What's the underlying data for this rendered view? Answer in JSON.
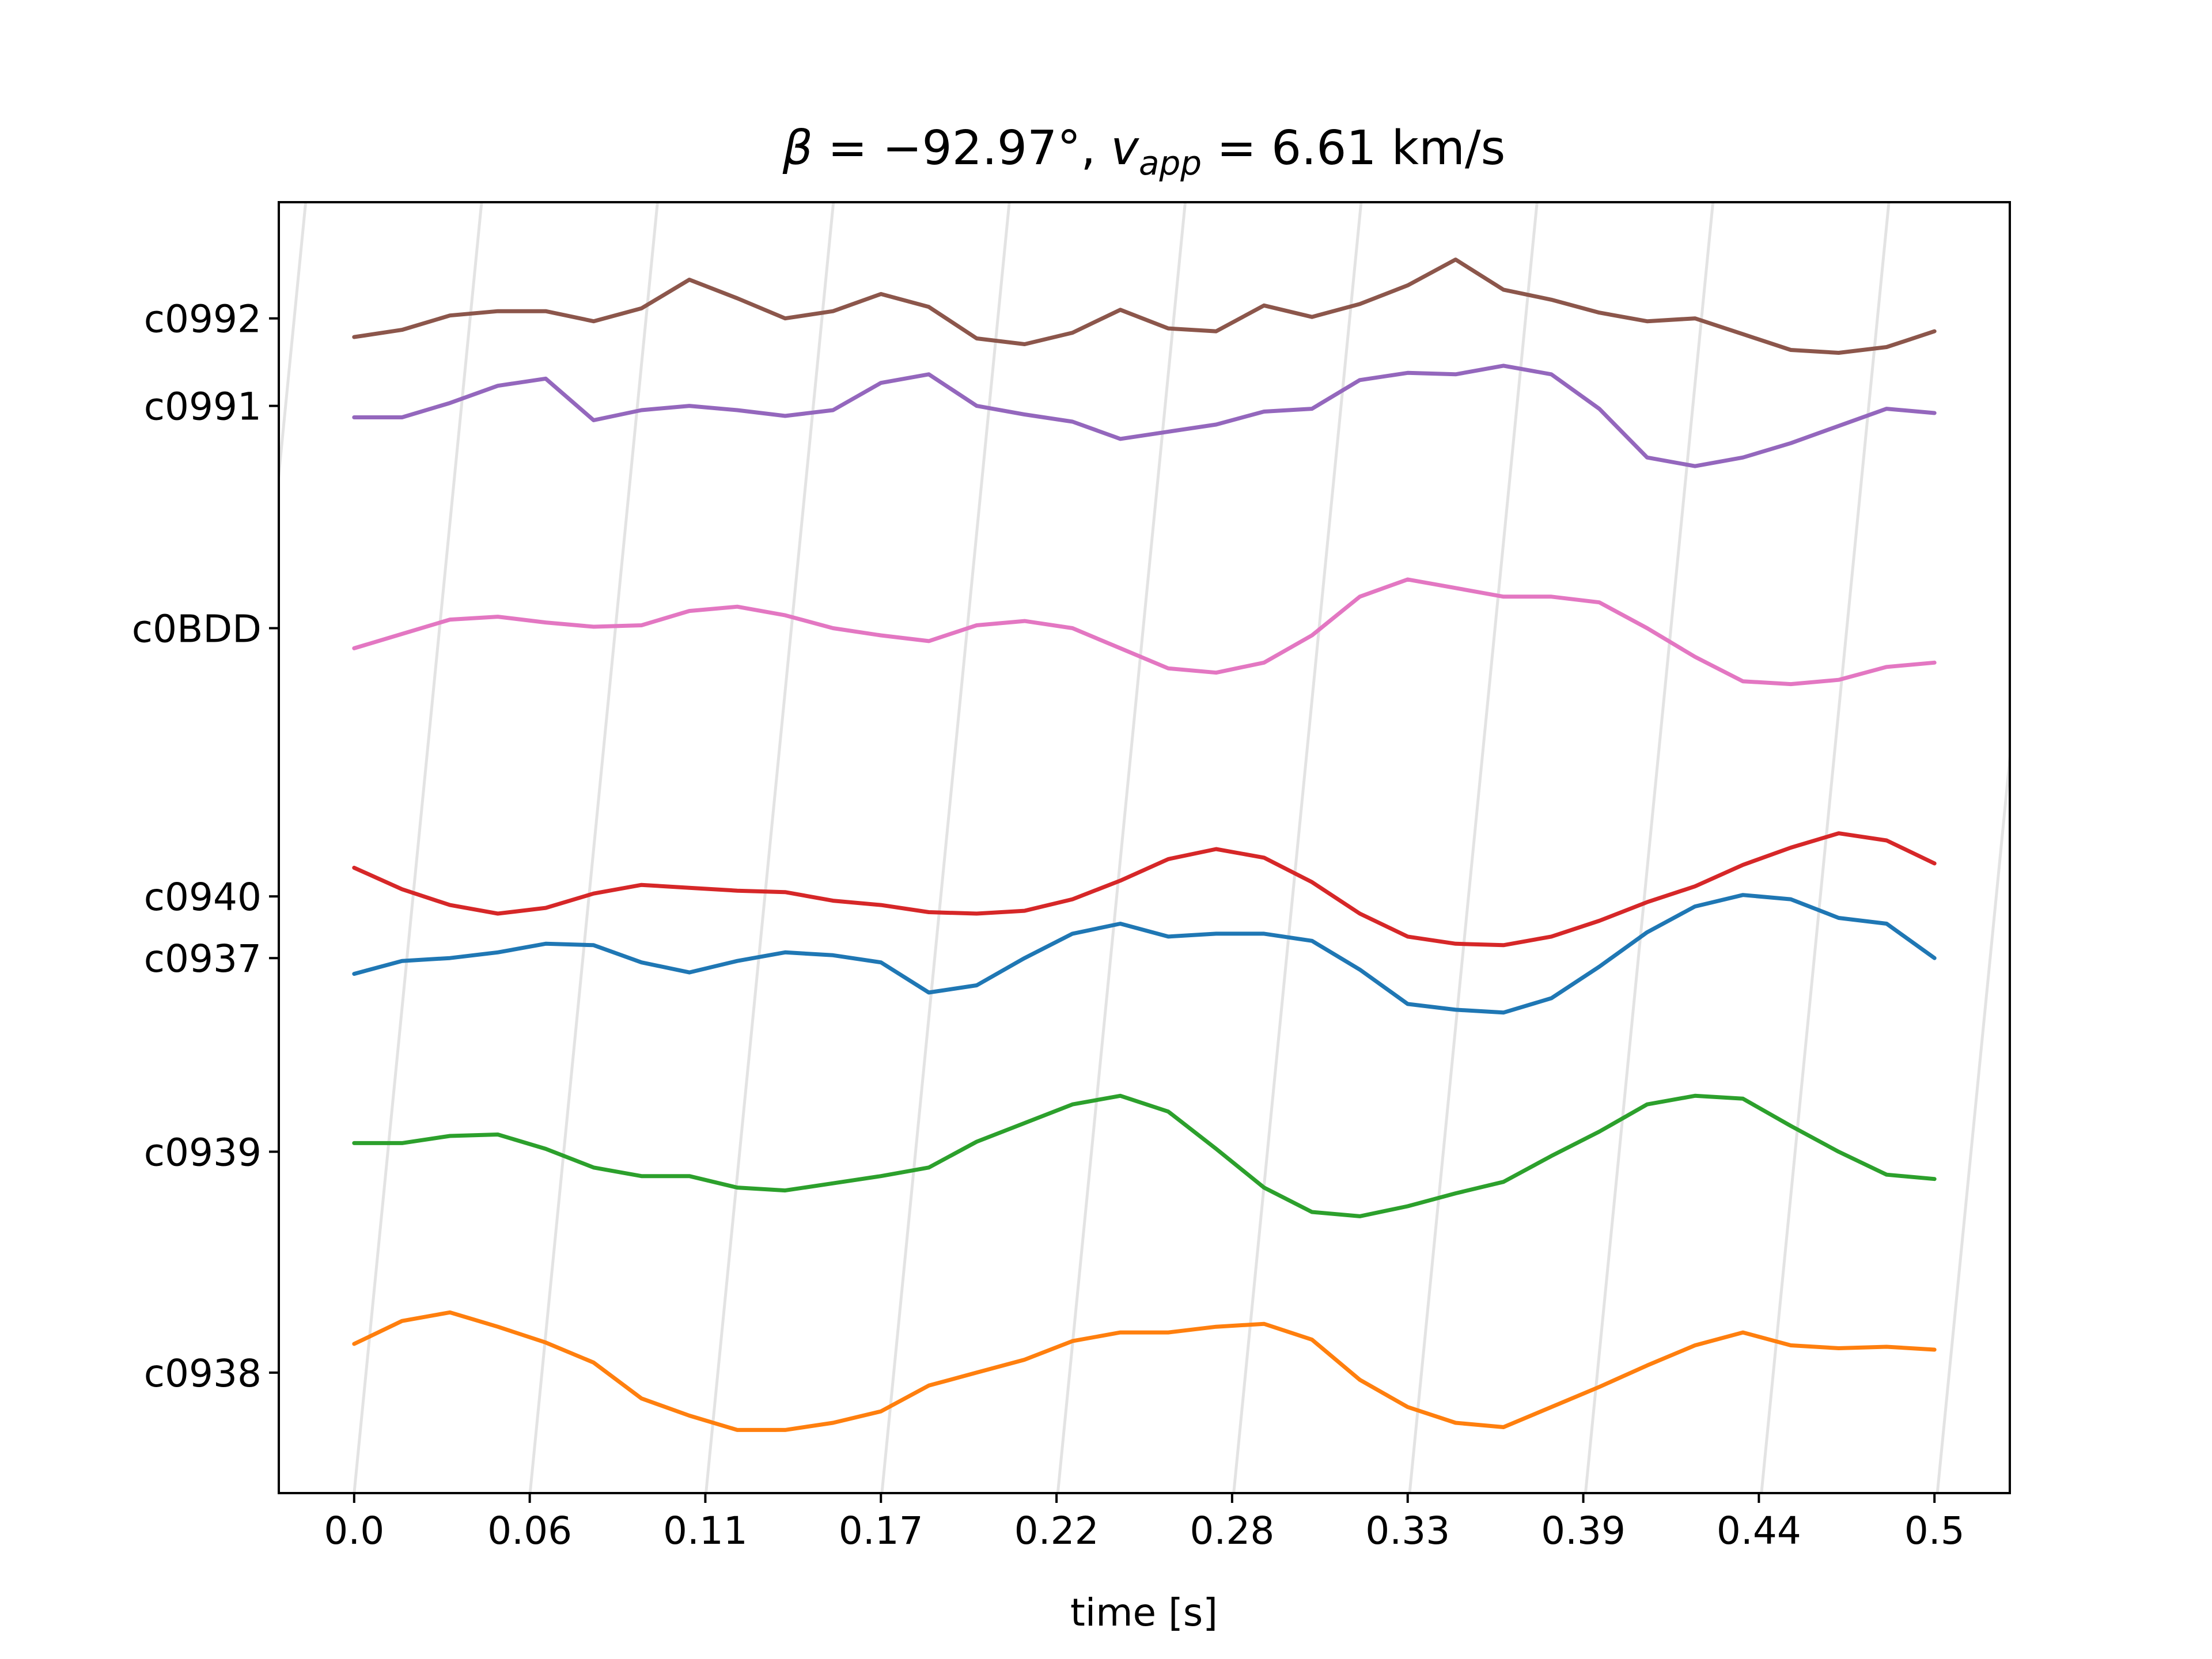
{
  "chart_data": {
    "type": "line",
    "title": {
      "beta_symbol": "β",
      "beta_value": " = −92.97°, ",
      "v_symbol": "v",
      "v_subscript": "app",
      "v_value": " = 6.61 km/s"
    },
    "xlabel": "time [s]",
    "x_ticks": [
      0.0,
      0.055,
      0.11,
      0.165,
      0.22,
      0.275,
      0.33,
      0.385,
      0.44,
      0.495
    ],
    "x_tick_labels": [
      "0.0",
      "0.06",
      "0.11",
      "0.17",
      "0.22",
      "0.28",
      "0.33",
      "0.39",
      "0.44",
      "0.5"
    ],
    "xlim": [
      -0.0236,
      0.5186
    ],
    "ylim": [
      0,
      900
    ],
    "grid": false,
    "moveout_slope_s_per_unit": 4.436e-05,
    "background_line_color": "#e3e3e3",
    "series": [
      {
        "name": "c0992",
        "color": "#8c564b",
        "offset": 819,
        "x": [
          0.0,
          0.015,
          0.03,
          0.045,
          0.06,
          0.075,
          0.09,
          0.105,
          0.12,
          0.135,
          0.15,
          0.165,
          0.18,
          0.195,
          0.21,
          0.225,
          0.24,
          0.255,
          0.27,
          0.285,
          0.3,
          0.315,
          0.33,
          0.345,
          0.36,
          0.375,
          0.39,
          0.405,
          0.42,
          0.435,
          0.45,
          0.465,
          0.48,
          0.495
        ],
        "y": [
          -13,
          -8,
          2,
          5,
          5,
          -2,
          7,
          27,
          14,
          0,
          5,
          17,
          8,
          -14,
          -18,
          -10,
          6,
          -7,
          -9,
          9,
          1,
          10,
          23,
          41,
          20,
          13,
          4,
          -2,
          0,
          -11,
          -22,
          -24,
          -20,
          -9
        ]
      },
      {
        "name": "c0991",
        "color": "#9467bd",
        "offset": 758,
        "x": [
          0.0,
          0.015,
          0.03,
          0.045,
          0.06,
          0.075,
          0.09,
          0.105,
          0.12,
          0.135,
          0.15,
          0.165,
          0.18,
          0.195,
          0.21,
          0.225,
          0.24,
          0.255,
          0.27,
          0.285,
          0.3,
          0.315,
          0.33,
          0.345,
          0.36,
          0.375,
          0.39,
          0.405,
          0.42,
          0.435,
          0.45,
          0.465,
          0.48,
          0.495
        ],
        "y": [
          -8,
          -8,
          2,
          14,
          19,
          -10,
          -3,
          0,
          -3,
          -7,
          -3,
          16,
          22,
          0,
          -6,
          -11,
          -23,
          -18,
          -13,
          -4,
          -2,
          18,
          23,
          22,
          28,
          22,
          -2,
          -36,
          -42,
          -36,
          -26,
          -14,
          -2,
          -5
        ]
      },
      {
        "name": "c0BDD",
        "color": "#e377c2",
        "offset": 603,
        "x": [
          0.0,
          0.015,
          0.03,
          0.045,
          0.06,
          0.075,
          0.09,
          0.105,
          0.12,
          0.135,
          0.15,
          0.165,
          0.18,
          0.195,
          0.21,
          0.225,
          0.24,
          0.255,
          0.27,
          0.285,
          0.3,
          0.315,
          0.33,
          0.345,
          0.36,
          0.375,
          0.39,
          0.405,
          0.42,
          0.435,
          0.45,
          0.465,
          0.48,
          0.495
        ],
        "y": [
          -14,
          -4,
          6,
          8,
          4,
          1,
          2,
          12,
          15,
          9,
          0,
          -5,
          -9,
          2,
          5,
          0,
          -14,
          -28,
          -31,
          -24,
          -5,
          22,
          34,
          28,
          22,
          22,
          18,
          0,
          -20,
          -37,
          -39,
          -36,
          -27,
          -24
        ]
      },
      {
        "name": "c0940",
        "color": "#d62728",
        "offset": 416,
        "x": [
          0.0,
          0.015,
          0.03,
          0.045,
          0.06,
          0.075,
          0.09,
          0.105,
          0.12,
          0.135,
          0.15,
          0.165,
          0.18,
          0.195,
          0.21,
          0.225,
          0.24,
          0.255,
          0.27,
          0.285,
          0.3,
          0.315,
          0.33,
          0.345,
          0.36,
          0.375,
          0.39,
          0.405,
          0.42,
          0.435,
          0.45,
          0.465,
          0.48,
          0.495
        ],
        "y": [
          20,
          5,
          -6,
          -12,
          -8,
          2,
          8,
          6,
          4,
          3,
          -3,
          -6,
          -11,
          -12,
          -10,
          -2,
          11,
          26,
          33,
          27,
          10,
          -12,
          -28,
          -33,
          -34,
          -28,
          -17,
          -4,
          7,
          22,
          34,
          44,
          39,
          23
        ]
      },
      {
        "name": "c0937",
        "color": "#1f77b4",
        "offset": 373,
        "x": [
          0.0,
          0.015,
          0.03,
          0.045,
          0.06,
          0.075,
          0.09,
          0.105,
          0.12,
          0.135,
          0.15,
          0.165,
          0.18,
          0.195,
          0.21,
          0.225,
          0.24,
          0.255,
          0.27,
          0.285,
          0.3,
          0.315,
          0.33,
          0.345,
          0.36,
          0.375,
          0.39,
          0.405,
          0.42,
          0.435,
          0.45,
          0.465,
          0.48,
          0.495
        ],
        "y": [
          -11,
          -2,
          0,
          4,
          10,
          9,
          -3,
          -10,
          -2,
          4,
          2,
          -3,
          -24,
          -19,
          0,
          17,
          24,
          15,
          17,
          17,
          12,
          -8,
          -32,
          -36,
          -38,
          -28,
          -6,
          18,
          36,
          44,
          41,
          28,
          24,
          0
        ]
      },
      {
        "name": "c0939",
        "color": "#2ca02c",
        "offset": 238,
        "x": [
          0.0,
          0.015,
          0.03,
          0.045,
          0.06,
          0.075,
          0.09,
          0.105,
          0.12,
          0.135,
          0.15,
          0.165,
          0.18,
          0.195,
          0.21,
          0.225,
          0.24,
          0.255,
          0.27,
          0.285,
          0.3,
          0.315,
          0.33,
          0.345,
          0.36,
          0.375,
          0.39,
          0.405,
          0.42,
          0.435,
          0.45,
          0.465,
          0.48,
          0.495
        ],
        "y": [
          6,
          6,
          11,
          12,
          2,
          -11,
          -17,
          -17,
          -25,
          -27,
          -22,
          -17,
          -11,
          7,
          20,
          33,
          39,
          28,
          2,
          -25,
          -42,
          -45,
          -38,
          -29,
          -21,
          -3,
          14,
          33,
          39,
          37,
          18,
          0,
          -16,
          -19
        ]
      },
      {
        "name": "c0938",
        "color": "#ff7f0e",
        "offset": 84,
        "x": [
          0.0,
          0.015,
          0.03,
          0.045,
          0.06,
          0.075,
          0.09,
          0.105,
          0.12,
          0.135,
          0.15,
          0.165,
          0.18,
          0.195,
          0.21,
          0.225,
          0.24,
          0.255,
          0.27,
          0.285,
          0.3,
          0.315,
          0.33,
          0.345,
          0.36,
          0.375,
          0.39,
          0.405,
          0.42,
          0.435,
          0.45,
          0.465,
          0.48,
          0.495
        ],
        "y": [
          20,
          36,
          42,
          32,
          21,
          7,
          -18,
          -30,
          -40,
          -40,
          -35,
          -27,
          -9,
          0,
          9,
          22,
          28,
          28,
          32,
          34,
          23,
          -5,
          -24,
          -35,
          -38,
          -24,
          -10,
          5,
          19,
          28,
          19,
          17,
          18,
          16
        ]
      }
    ]
  }
}
